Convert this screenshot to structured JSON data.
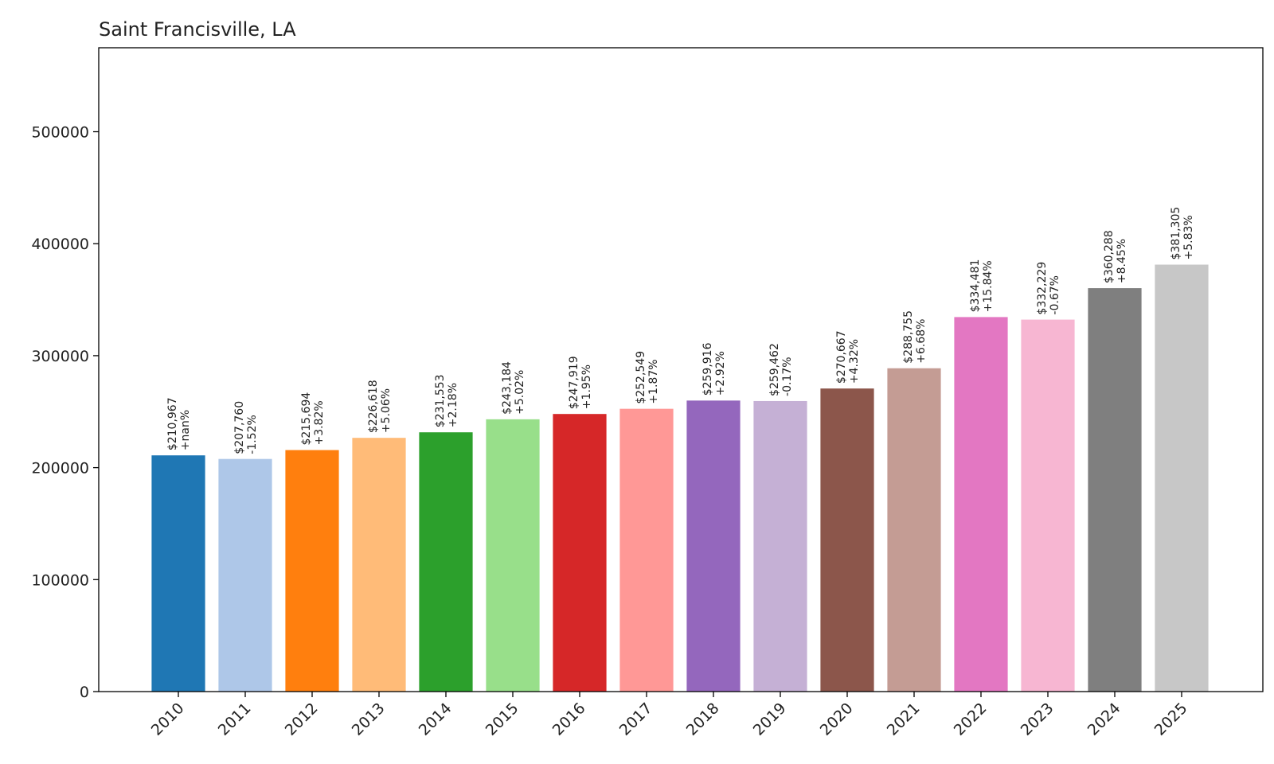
{
  "chart_data": {
    "type": "bar",
    "title": "Saint Francisville, LA",
    "xlabel": "",
    "ylabel": "",
    "categories": [
      "2010",
      "2011",
      "2012",
      "2013",
      "2014",
      "2015",
      "2016",
      "2017",
      "2018",
      "2019",
      "2020",
      "2021",
      "2022",
      "2023",
      "2024",
      "2025"
    ],
    "values": [
      210967,
      207760,
      215694,
      226618,
      231553,
      243184,
      247919,
      252549,
      259916,
      259462,
      270667,
      288755,
      334481,
      332229,
      360288,
      381305
    ],
    "value_labels": [
      "$210,967",
      "$207,760",
      "$215,694",
      "$226,618",
      "$231,553",
      "$243,184",
      "$247,919",
      "$252,549",
      "$259,916",
      "$259,462",
      "$270,667",
      "$288,755",
      "$334,481",
      "$332,229",
      "$360,288",
      "$381,305"
    ],
    "change_labels": [
      "+nan%",
      "-1.52%",
      "+3.82%",
      "+5.06%",
      "+2.18%",
      "+5.02%",
      "+1.95%",
      "+1.87%",
      "+2.92%",
      "-0.17%",
      "+4.32%",
      "+6.68%",
      "+15.84%",
      "-0.67%",
      "+8.45%",
      "+5.83%"
    ],
    "colors": [
      "#1f77b4",
      "#aec7e8",
      "#ff7f0e",
      "#ffbb78",
      "#2ca02c",
      "#98df8a",
      "#d62728",
      "#ff9896",
      "#9467bd",
      "#c5b0d5",
      "#8c564b",
      "#c49c94",
      "#e377c2",
      "#f7b6d2",
      "#7f7f7f",
      "#c7c7c7"
    ],
    "y_ticks": [
      0,
      100000,
      200000,
      300000,
      400000,
      500000
    ],
    "y_tick_labels": [
      "0",
      "100000",
      "200000",
      "300000",
      "400000",
      "500000"
    ],
    "ylim": [
      0,
      575000
    ],
    "grid": false,
    "legend": "none"
  }
}
